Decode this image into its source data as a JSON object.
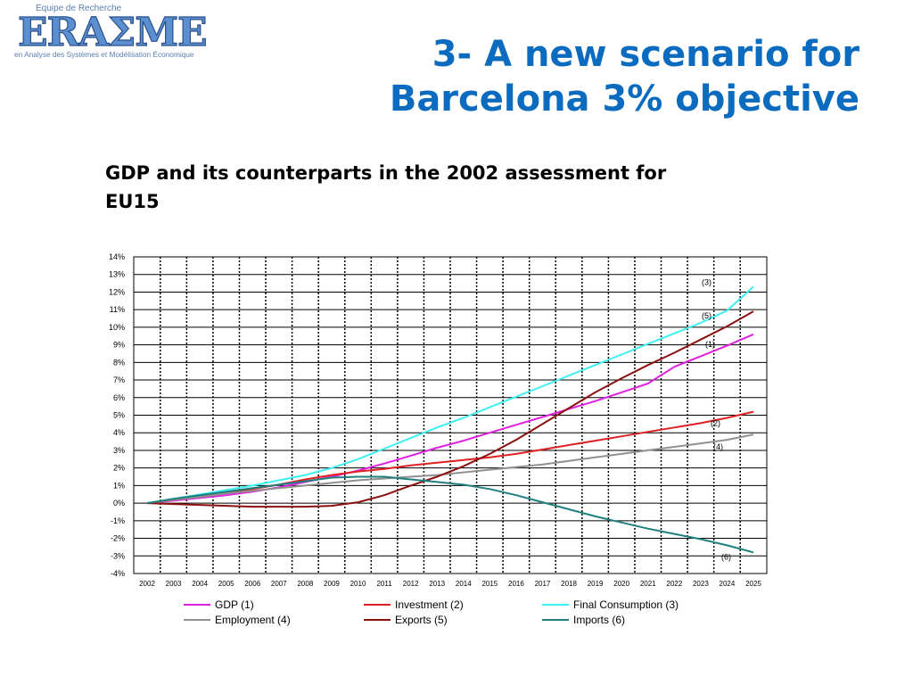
{
  "logo": {
    "top_text": "Equipe de Recherche",
    "brand": "ERAΣME",
    "bottom_text": "en Analyse des Systèmes et Modélisation Économique"
  },
  "slide": {
    "title_line1": "3- A new scenario for",
    "title_line2": "Barcelona 3% objective",
    "subtitle_line1": "GDP and its counterparts in the 2002 assessment for",
    "subtitle_line2": "EU15"
  },
  "chart_data": {
    "type": "line",
    "title": "",
    "xlabel": "",
    "ylabel": "",
    "x": [
      2002,
      2003,
      2004,
      2005,
      2006,
      2007,
      2008,
      2009,
      2010,
      2011,
      2012,
      2013,
      2014,
      2015,
      2016,
      2017,
      2018,
      2019,
      2020,
      2021,
      2022,
      2023,
      2024,
      2025
    ],
    "y_ticks": [
      "14%",
      "13%",
      "12%",
      "11%",
      "10%",
      "9%",
      "8%",
      "7%",
      "6%",
      "5%",
      "4%",
      "3%",
      "2%",
      "1%",
      "0%",
      "-1%",
      "-2%",
      "-3%",
      "-4%"
    ],
    "ylim": [
      -4,
      14
    ],
    "grid": true,
    "legend_position": "bottom",
    "series": [
      {
        "name": "GDP (1)",
        "label": "(1)",
        "color": "#e020e0",
        "values": [
          0,
          0.15,
          0.3,
          0.45,
          0.65,
          0.9,
          1.2,
          1.5,
          1.85,
          2.25,
          2.7,
          3.15,
          3.55,
          4.0,
          4.45,
          4.9,
          5.35,
          5.8,
          6.3,
          6.8,
          7.75,
          8.35,
          8.95,
          9.6
        ]
      },
      {
        "name": "Investment (2)",
        "label": "(2)",
        "color": "#e02020",
        "values": [
          0,
          0.2,
          0.4,
          0.6,
          0.8,
          1.05,
          1.35,
          1.6,
          1.8,
          1.95,
          2.15,
          2.3,
          2.45,
          2.6,
          2.8,
          3.05,
          3.3,
          3.55,
          3.8,
          4.05,
          4.3,
          4.55,
          4.85,
          5.2
        ]
      },
      {
        "name": "Final Consumption (3)",
        "label": "(3)",
        "color": "#3ef0f0",
        "values": [
          0,
          0.25,
          0.5,
          0.75,
          1.0,
          1.3,
          1.6,
          2.0,
          2.5,
          3.1,
          3.7,
          4.3,
          4.85,
          5.45,
          6.05,
          6.65,
          7.25,
          7.85,
          8.45,
          9.05,
          9.65,
          10.25,
          10.95,
          12.3
        ]
      },
      {
        "name": "Employment (4)",
        "label": "(4)",
        "color": "#909090",
        "values": [
          0,
          0.2,
          0.35,
          0.55,
          0.7,
          0.85,
          1.0,
          1.15,
          1.3,
          1.4,
          1.5,
          1.6,
          1.75,
          1.9,
          2.05,
          2.2,
          2.4,
          2.6,
          2.8,
          3.0,
          3.2,
          3.4,
          3.6,
          3.9
        ]
      },
      {
        "name": "Exports (5)",
        "label": "(5)",
        "color": "#8b1010",
        "values": [
          0,
          -0.05,
          -0.1,
          -0.15,
          -0.2,
          -0.2,
          -0.2,
          -0.15,
          0.05,
          0.45,
          1.0,
          1.5,
          2.1,
          2.8,
          3.6,
          4.5,
          5.4,
          6.3,
          7.1,
          7.85,
          8.55,
          9.3,
          10.05,
          10.9
        ]
      },
      {
        "name": "Imports (6)",
        "label": "(6)",
        "color": "#208080",
        "values": [
          0,
          0.25,
          0.45,
          0.65,
          0.85,
          1.05,
          1.25,
          1.45,
          1.5,
          1.5,
          1.35,
          1.2,
          1.05,
          0.8,
          0.45,
          0.05,
          -0.35,
          -0.75,
          -1.1,
          -1.45,
          -1.75,
          -2.05,
          -2.4,
          -2.8
        ]
      }
    ]
  }
}
